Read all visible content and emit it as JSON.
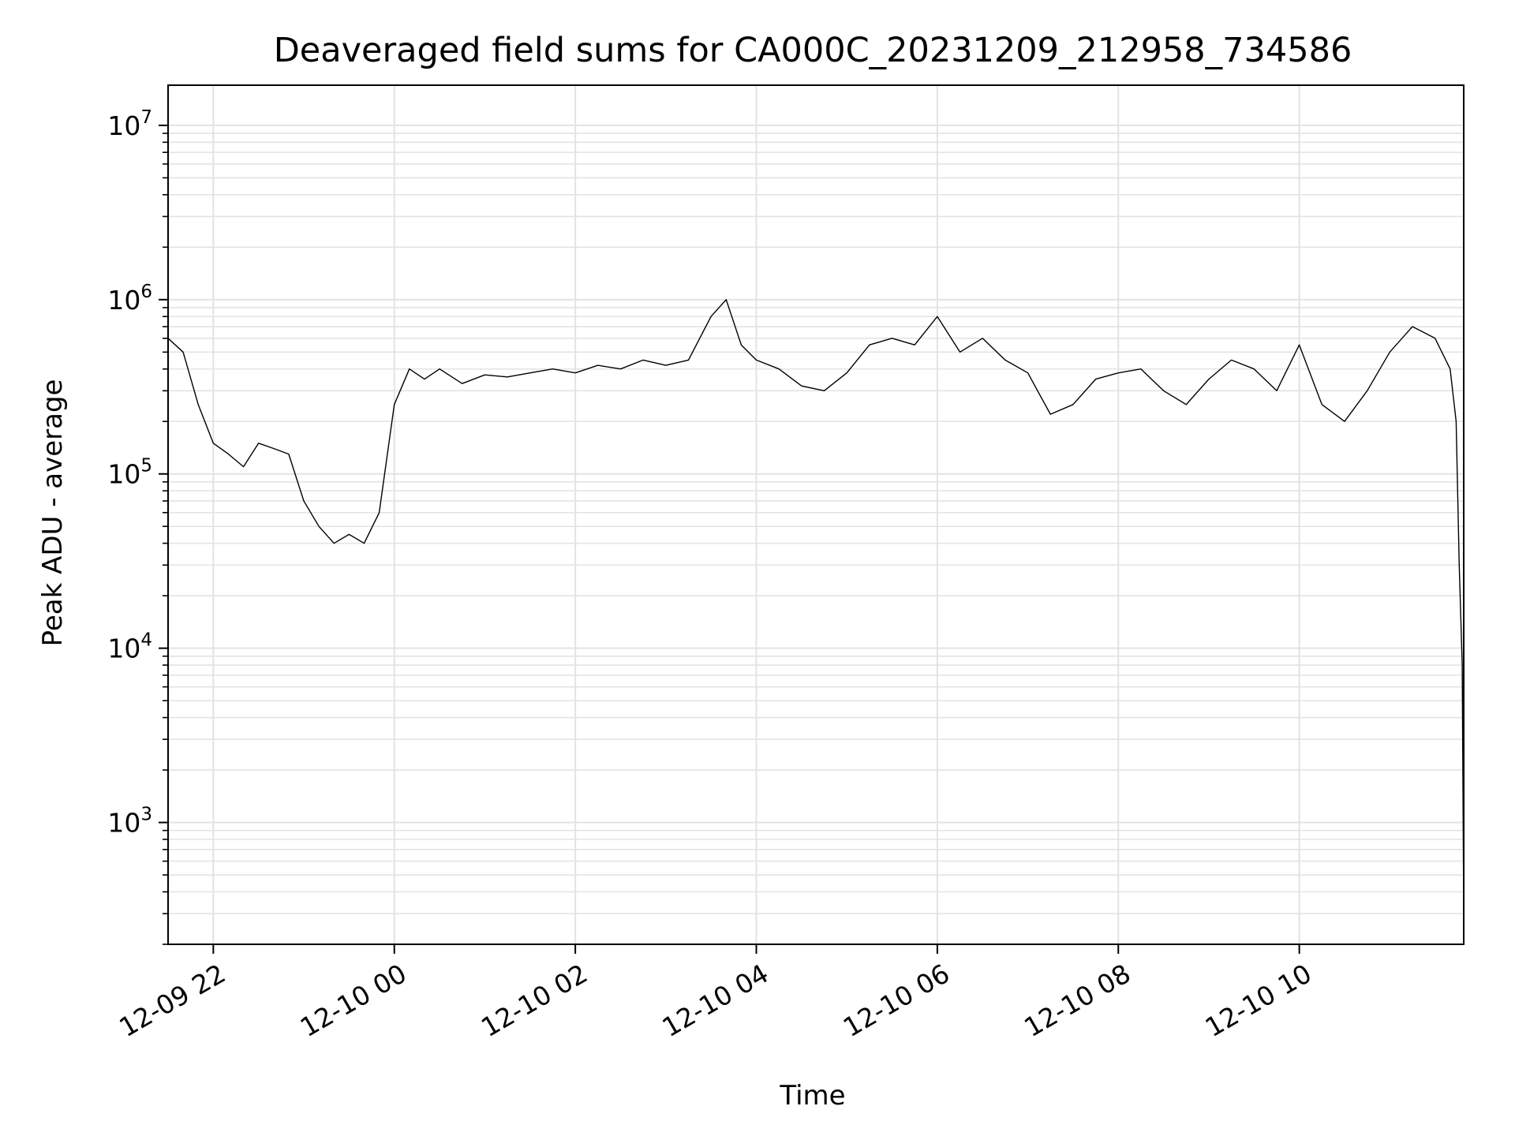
{
  "chart_data": {
    "type": "line",
    "title": "Deaveraged field sums for CA000C_20231209_212958_734586",
    "xlabel": "Time",
    "ylabel": "Peak ADU - average",
    "y_scale": "log",
    "ylim": [
      200,
      17000000
    ],
    "xlim": [
      "2023-12-09 21:30",
      "2023-12-10 11:49"
    ],
    "grid": true,
    "line_color": "#000000",
    "grid_color": "#e3e3e3",
    "x_ticks": [
      {
        "value": "2023-12-09 22:00",
        "label": "12-09 22"
      },
      {
        "value": "2023-12-10 00:00",
        "label": "12-10 00"
      },
      {
        "value": "2023-12-10 02:00",
        "label": "12-10 02"
      },
      {
        "value": "2023-12-10 04:00",
        "label": "12-10 04"
      },
      {
        "value": "2023-12-10 06:00",
        "label": "12-10 06"
      },
      {
        "value": "2023-12-10 08:00",
        "label": "12-10 08"
      },
      {
        "value": "2023-12-10 10:00",
        "label": "12-10 10"
      }
    ],
    "y_ticks": [
      {
        "value": 1000,
        "base": "10",
        "exp": "3"
      },
      {
        "value": 10000,
        "base": "10",
        "exp": "4"
      },
      {
        "value": 100000,
        "base": "10",
        "exp": "5"
      },
      {
        "value": 1000000,
        "base": "10",
        "exp": "6"
      },
      {
        "value": 10000000,
        "base": "10",
        "exp": "7"
      }
    ],
    "series": [
      {
        "x": [
          "2023-12-09 21:30",
          "2023-12-09 21:40",
          "2023-12-09 21:50",
          "2023-12-09 22:00",
          "2023-12-09 22:10",
          "2023-12-09 22:20",
          "2023-12-09 22:30",
          "2023-12-09 22:40",
          "2023-12-09 22:50",
          "2023-12-09 23:00",
          "2023-12-09 23:10",
          "2023-12-09 23:20",
          "2023-12-09 23:30",
          "2023-12-09 23:40",
          "2023-12-09 23:50",
          "2023-12-10 00:00",
          "2023-12-10 00:10",
          "2023-12-10 00:20",
          "2023-12-10 00:30",
          "2023-12-10 00:45",
          "2023-12-10 01:00",
          "2023-12-10 01:15",
          "2023-12-10 01:30",
          "2023-12-10 01:45",
          "2023-12-10 02:00",
          "2023-12-10 02:15",
          "2023-12-10 02:30",
          "2023-12-10 02:45",
          "2023-12-10 03:00",
          "2023-12-10 03:15",
          "2023-12-10 03:30",
          "2023-12-10 03:40",
          "2023-12-10 03:50",
          "2023-12-10 04:00",
          "2023-12-10 04:15",
          "2023-12-10 04:30",
          "2023-12-10 04:45",
          "2023-12-10 05:00",
          "2023-12-10 05:15",
          "2023-12-10 05:30",
          "2023-12-10 05:45",
          "2023-12-10 06:00",
          "2023-12-10 06:15",
          "2023-12-10 06:30",
          "2023-12-10 06:45",
          "2023-12-10 07:00",
          "2023-12-10 07:15",
          "2023-12-10 07:30",
          "2023-12-10 07:45",
          "2023-12-10 08:00",
          "2023-12-10 08:15",
          "2023-12-10 08:30",
          "2023-12-10 08:45",
          "2023-12-10 09:00",
          "2023-12-10 09:15",
          "2023-12-10 09:30",
          "2023-12-10 09:45",
          "2023-12-10 10:00",
          "2023-12-10 10:15",
          "2023-12-10 10:30",
          "2023-12-10 10:45",
          "2023-12-10 11:00",
          "2023-12-10 11:15",
          "2023-12-10 11:30",
          "2023-12-10 11:40",
          "2023-12-10 11:44",
          "2023-12-10 11:46",
          "2023-12-10 11:48",
          "2023-12-10 11:49"
        ],
        "y": [
          600000,
          500000,
          250000,
          150000,
          130000,
          110000,
          150000,
          140000,
          130000,
          70000,
          50000,
          40000,
          45000,
          40000,
          60000,
          250000,
          400000,
          350000,
          400000,
          330000,
          370000,
          360000,
          380000,
          400000,
          380000,
          420000,
          400000,
          450000,
          420000,
          450000,
          800000,
          1000000,
          550000,
          450000,
          400000,
          320000,
          300000,
          380000,
          550000,
          600000,
          550000,
          800000,
          500000,
          600000,
          450000,
          380000,
          220000,
          250000,
          350000,
          380000,
          400000,
          300000,
          250000,
          350000,
          450000,
          400000,
          300000,
          550000,
          250000,
          200000,
          300000,
          500000,
          700000,
          600000,
          400000,
          200000,
          30000,
          8000,
          300
        ]
      }
    ]
  }
}
